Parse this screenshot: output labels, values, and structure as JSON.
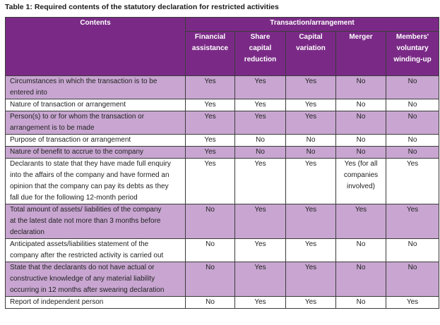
{
  "caption": "Table 1: Required contents of the statutory declaration for restricted activities",
  "colors": {
    "header_bg": "#7a2a86",
    "header_text": "#ffffff",
    "row_shade": "#c8a6d1",
    "row_white": "#ffffff",
    "border": "#3b3b3b"
  },
  "header": {
    "contents": "Contents",
    "group": "Transaction/arrangement",
    "columns": [
      [
        "Financial",
        "assistance"
      ],
      [
        "Share capital",
        "reduction"
      ],
      [
        "Capital",
        "variation"
      ],
      [
        "Merger"
      ],
      [
        "Members'",
        "voluntary",
        "winding-up"
      ]
    ]
  },
  "rows": [
    {
      "label": [
        "Circumstances in which the transaction is to be",
        "entered into"
      ],
      "values": [
        [
          "Yes"
        ],
        [
          "Yes"
        ],
        [
          "Yes"
        ],
        [
          "No"
        ],
        [
          "No"
        ]
      ]
    },
    {
      "label": [
        "Nature of transaction or arrangement"
      ],
      "values": [
        [
          "Yes"
        ],
        [
          "Yes"
        ],
        [
          "Yes"
        ],
        [
          "No"
        ],
        [
          "No"
        ]
      ]
    },
    {
      "label": [
        "Person(s) to or for whom the transaction or",
        "arrangement is to be made"
      ],
      "values": [
        [
          "Yes"
        ],
        [
          "Yes"
        ],
        [
          "Yes"
        ],
        [
          "No"
        ],
        [
          "No"
        ]
      ]
    },
    {
      "label": [
        "Purpose of transaction or arrangement"
      ],
      "values": [
        [
          "Yes"
        ],
        [
          "No"
        ],
        [
          "No"
        ],
        [
          "No"
        ],
        [
          "No"
        ]
      ]
    },
    {
      "label": [
        "Nature of benefit to accrue to the company"
      ],
      "values": [
        [
          "Yes"
        ],
        [
          "No"
        ],
        [
          "No"
        ],
        [
          "No"
        ],
        [
          "No"
        ]
      ]
    },
    {
      "label": [
        "Declarants to state that they have made full enquiry",
        "into the affairs of the company and have formed an",
        "opinion that the company can pay its debts as they",
        "fall due for the following 12-month period"
      ],
      "values": [
        [
          "Yes"
        ],
        [
          "Yes"
        ],
        [
          "Yes"
        ],
        [
          "Yes (for all",
          "companies",
          "involved)"
        ],
        [
          "Yes"
        ]
      ]
    },
    {
      "label": [
        "Total amount of assets/ liabilities of the company",
        "at the latest date not more than 3 months before",
        "declaration"
      ],
      "values": [
        [
          "No"
        ],
        [
          "Yes"
        ],
        [
          "Yes"
        ],
        [
          "Yes"
        ],
        [
          "Yes"
        ]
      ]
    },
    {
      "label": [
        "Anticipated assets/liabilities statement of the",
        "company after the restricted activity is carried out"
      ],
      "values": [
        [
          "No"
        ],
        [
          "Yes"
        ],
        [
          "Yes"
        ],
        [
          "No"
        ],
        [
          "No"
        ]
      ]
    },
    {
      "label": [
        "State that the declarants do not have actual or",
        "constructive knowledge of any material liability",
        "occurring in 12 months after swearing declaration"
      ],
      "values": [
        [
          "No"
        ],
        [
          "Yes"
        ],
        [
          "Yes"
        ],
        [
          "No"
        ],
        [
          "No"
        ]
      ]
    },
    {
      "label": [
        "Report of independent person"
      ],
      "values": [
        [
          "No"
        ],
        [
          "Yes"
        ],
        [
          "Yes"
        ],
        [
          "No"
        ],
        [
          "Yes"
        ]
      ]
    }
  ]
}
